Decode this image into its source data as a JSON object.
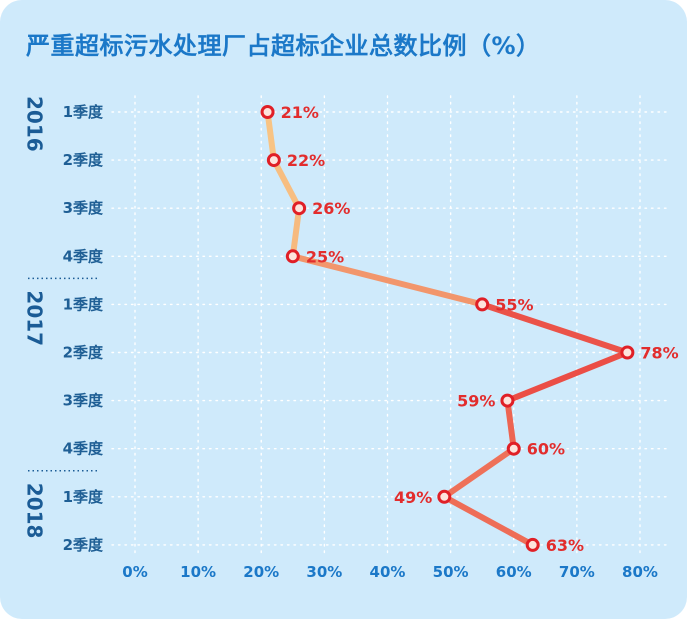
{
  "title": "严重超标污水处理厂占超标企业总数比例（%）",
  "chart_data": {
    "type": "line",
    "orientation": "vertical-categories",
    "title": "严重超标污水处理厂占超标企业总数比例（%）",
    "xlim": [
      0,
      80
    ],
    "x_ticks": [
      "0%",
      "10%",
      "20%",
      "30%",
      "40%",
      "50%",
      "60%",
      "70%",
      "80%"
    ],
    "grid": true,
    "groups": [
      {
        "year": "2016",
        "quarters": [
          "1季度",
          "2季度",
          "3季度",
          "4季度"
        ]
      },
      {
        "year": "2017",
        "quarters": [
          "1季度",
          "2季度",
          "3季度",
          "4季度"
        ]
      },
      {
        "year": "2018",
        "quarters": [
          "1季度",
          "2季度"
        ]
      }
    ],
    "series": [
      {
        "values": [
          21,
          22,
          26,
          25,
          55,
          78,
          59,
          60,
          49,
          63
        ],
        "labels": [
          "21%",
          "22%",
          "26%",
          "25%",
          "55%",
          "78%",
          "59%",
          "60%",
          "49%",
          "63%"
        ]
      }
    ],
    "colors": {
      "line_low": "#f8c886",
      "line_high": "#e8363a",
      "marker_stroke": "#e01f26",
      "marker_fill": "#fde3dc",
      "grid": "#ffffff",
      "tick": "#1b78c8",
      "label": "#e22d2d"
    }
  }
}
